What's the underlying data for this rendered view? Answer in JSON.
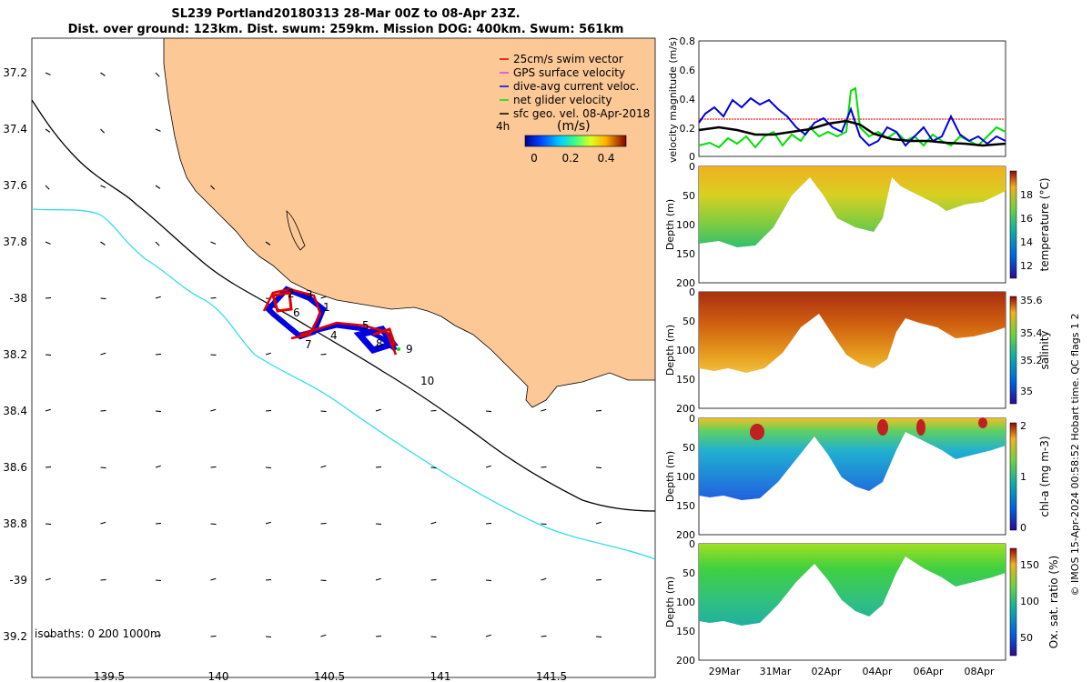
{
  "title": {
    "line1": "SL239 Portland20180313 28-Mar 00Z to 08-Apr 23Z.",
    "line2": "Dist. over ground: 123km. Dist. swum: 259km. Mission DOG: 400km. Swum: 561km"
  },
  "map": {
    "lat_ticks": [
      "37.2",
      "37.4",
      "37.6",
      "37.8",
      "-38",
      "38.2",
      "38.4",
      "38.6",
      "38.8",
      "-39",
      "39.2"
    ],
    "lon_ticks": [
      "139.5",
      "140",
      "140.5",
      "141",
      "141.5"
    ],
    "day_labels": [
      "1",
      "2",
      "3",
      "4",
      "5",
      "6",
      "7",
      "8",
      "9",
      "10"
    ],
    "isobaths_label": "isobaths: 0   200  1000m",
    "interval_label": "4h",
    "colors": {
      "land": "#fcc896",
      "isobath_200": "#000000",
      "isobath_1000": "#33dde6"
    }
  },
  "legend": {
    "items": [
      {
        "label": "25cm/s swim vector",
        "color": "#e00000"
      },
      {
        "label": "GPS surface velocity",
        "color": "#e040e0"
      },
      {
        "label": "dive-avg current veloc.",
        "color": "#0000e0"
      },
      {
        "label": "net glider velocity",
        "color": "#00e000"
      },
      {
        "label": "sfc geo. vel. 08-Apr-2018",
        "color": "#000000"
      }
    ]
  },
  "colorbar": {
    "label": "(m/s)",
    "ticks": [
      "0",
      "0.2",
      "0.4"
    ]
  },
  "velocity_panel": {
    "ylabel": "velocity magnitude (m/s)",
    "yticks": [
      "0.8",
      "0.6",
      "0.4",
      "0.2",
      "0"
    ]
  },
  "sections": [
    {
      "name": "temperature",
      "ylabel": "Depth (m)",
      "clabel": "temperature (°C)",
      "yticks": [
        "0",
        "50",
        "100",
        "150",
        "200"
      ],
      "cticks": [
        "18",
        "16",
        "14",
        "12"
      ]
    },
    {
      "name": "salinity",
      "ylabel": "Depth (m)",
      "clabel": "salinity",
      "yticks": [
        "0",
        "50",
        "100",
        "150",
        "200"
      ],
      "cticks": [
        "35.6",
        "35.4",
        "35.2",
        "35"
      ]
    },
    {
      "name": "chla",
      "ylabel": "Depth (m)",
      "clabel": "chl-a (mg m-3)",
      "yticks": [
        "0",
        "50",
        "100",
        "150",
        "200"
      ],
      "cticks": [
        "2",
        "1",
        "0"
      ]
    },
    {
      "name": "oxygen",
      "ylabel": "Depth (m)",
      "clabel": "Ox. sat. ratio (%)",
      "yticks": [
        "0",
        "50",
        "100",
        "150",
        "200"
      ],
      "cticks": [
        "150",
        "100",
        "50"
      ]
    }
  ],
  "x_ticks": [
    "29Mar",
    "31Mar",
    "02Apr",
    "04Apr",
    "06Apr",
    "08Apr"
  ],
  "footer": "© IMOS 15-Apr-2024 00:58:52 Hobart time. QC flags 1  2"
}
